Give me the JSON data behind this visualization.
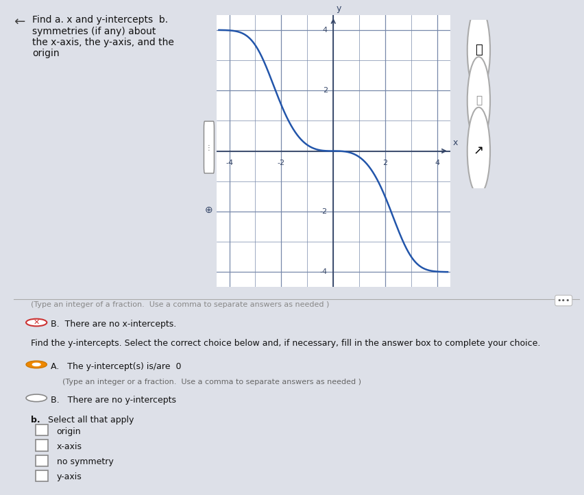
{
  "page_bg": "#dde0e8",
  "graph_bg": "white",
  "graph_xlim": [
    -4.5,
    4.5
  ],
  "graph_ylim": [
    -4.5,
    4.5
  ],
  "graph_xticks": [
    -4,
    -2,
    2,
    4
  ],
  "graph_yticks": [
    -4,
    -2,
    2,
    4
  ],
  "curve_color": "#2255aa",
  "curve_linewidth": 1.8,
  "grid_color": "#7788aa",
  "axis_color": "#334466",
  "title_text": "Find a. x and y-intercepts  b.\nsymmetries (if any) about\nthe x-axis, the y-axis, and the\norigin",
  "line1": "(Type an integer of a fraction.  Use a comma to separate answers as needed )",
  "line2_xmark": "✘",
  "line2": "B.  There are no x-intercepts.",
  "line3": "Find the y-intercepts. Select the correct choice below and, if necessary, fill in the answer box to complete your choice.",
  "line4": "A.   The y-intercept(s) is/are  0",
  "line4b": "(Type an integer or a fraction.  Use a comma to separate answers as needed )",
  "line5": "B.   There are no y-intercepts",
  "line6": "b. Select all that apply",
  "checkboxes": [
    "origin",
    "x-axis",
    "no symmetry",
    "y-axis"
  ],
  "sidebar_color": "#8899bb",
  "sidebar_accent_color": "#c8a060",
  "left_panel_bg": "#e8eaef"
}
